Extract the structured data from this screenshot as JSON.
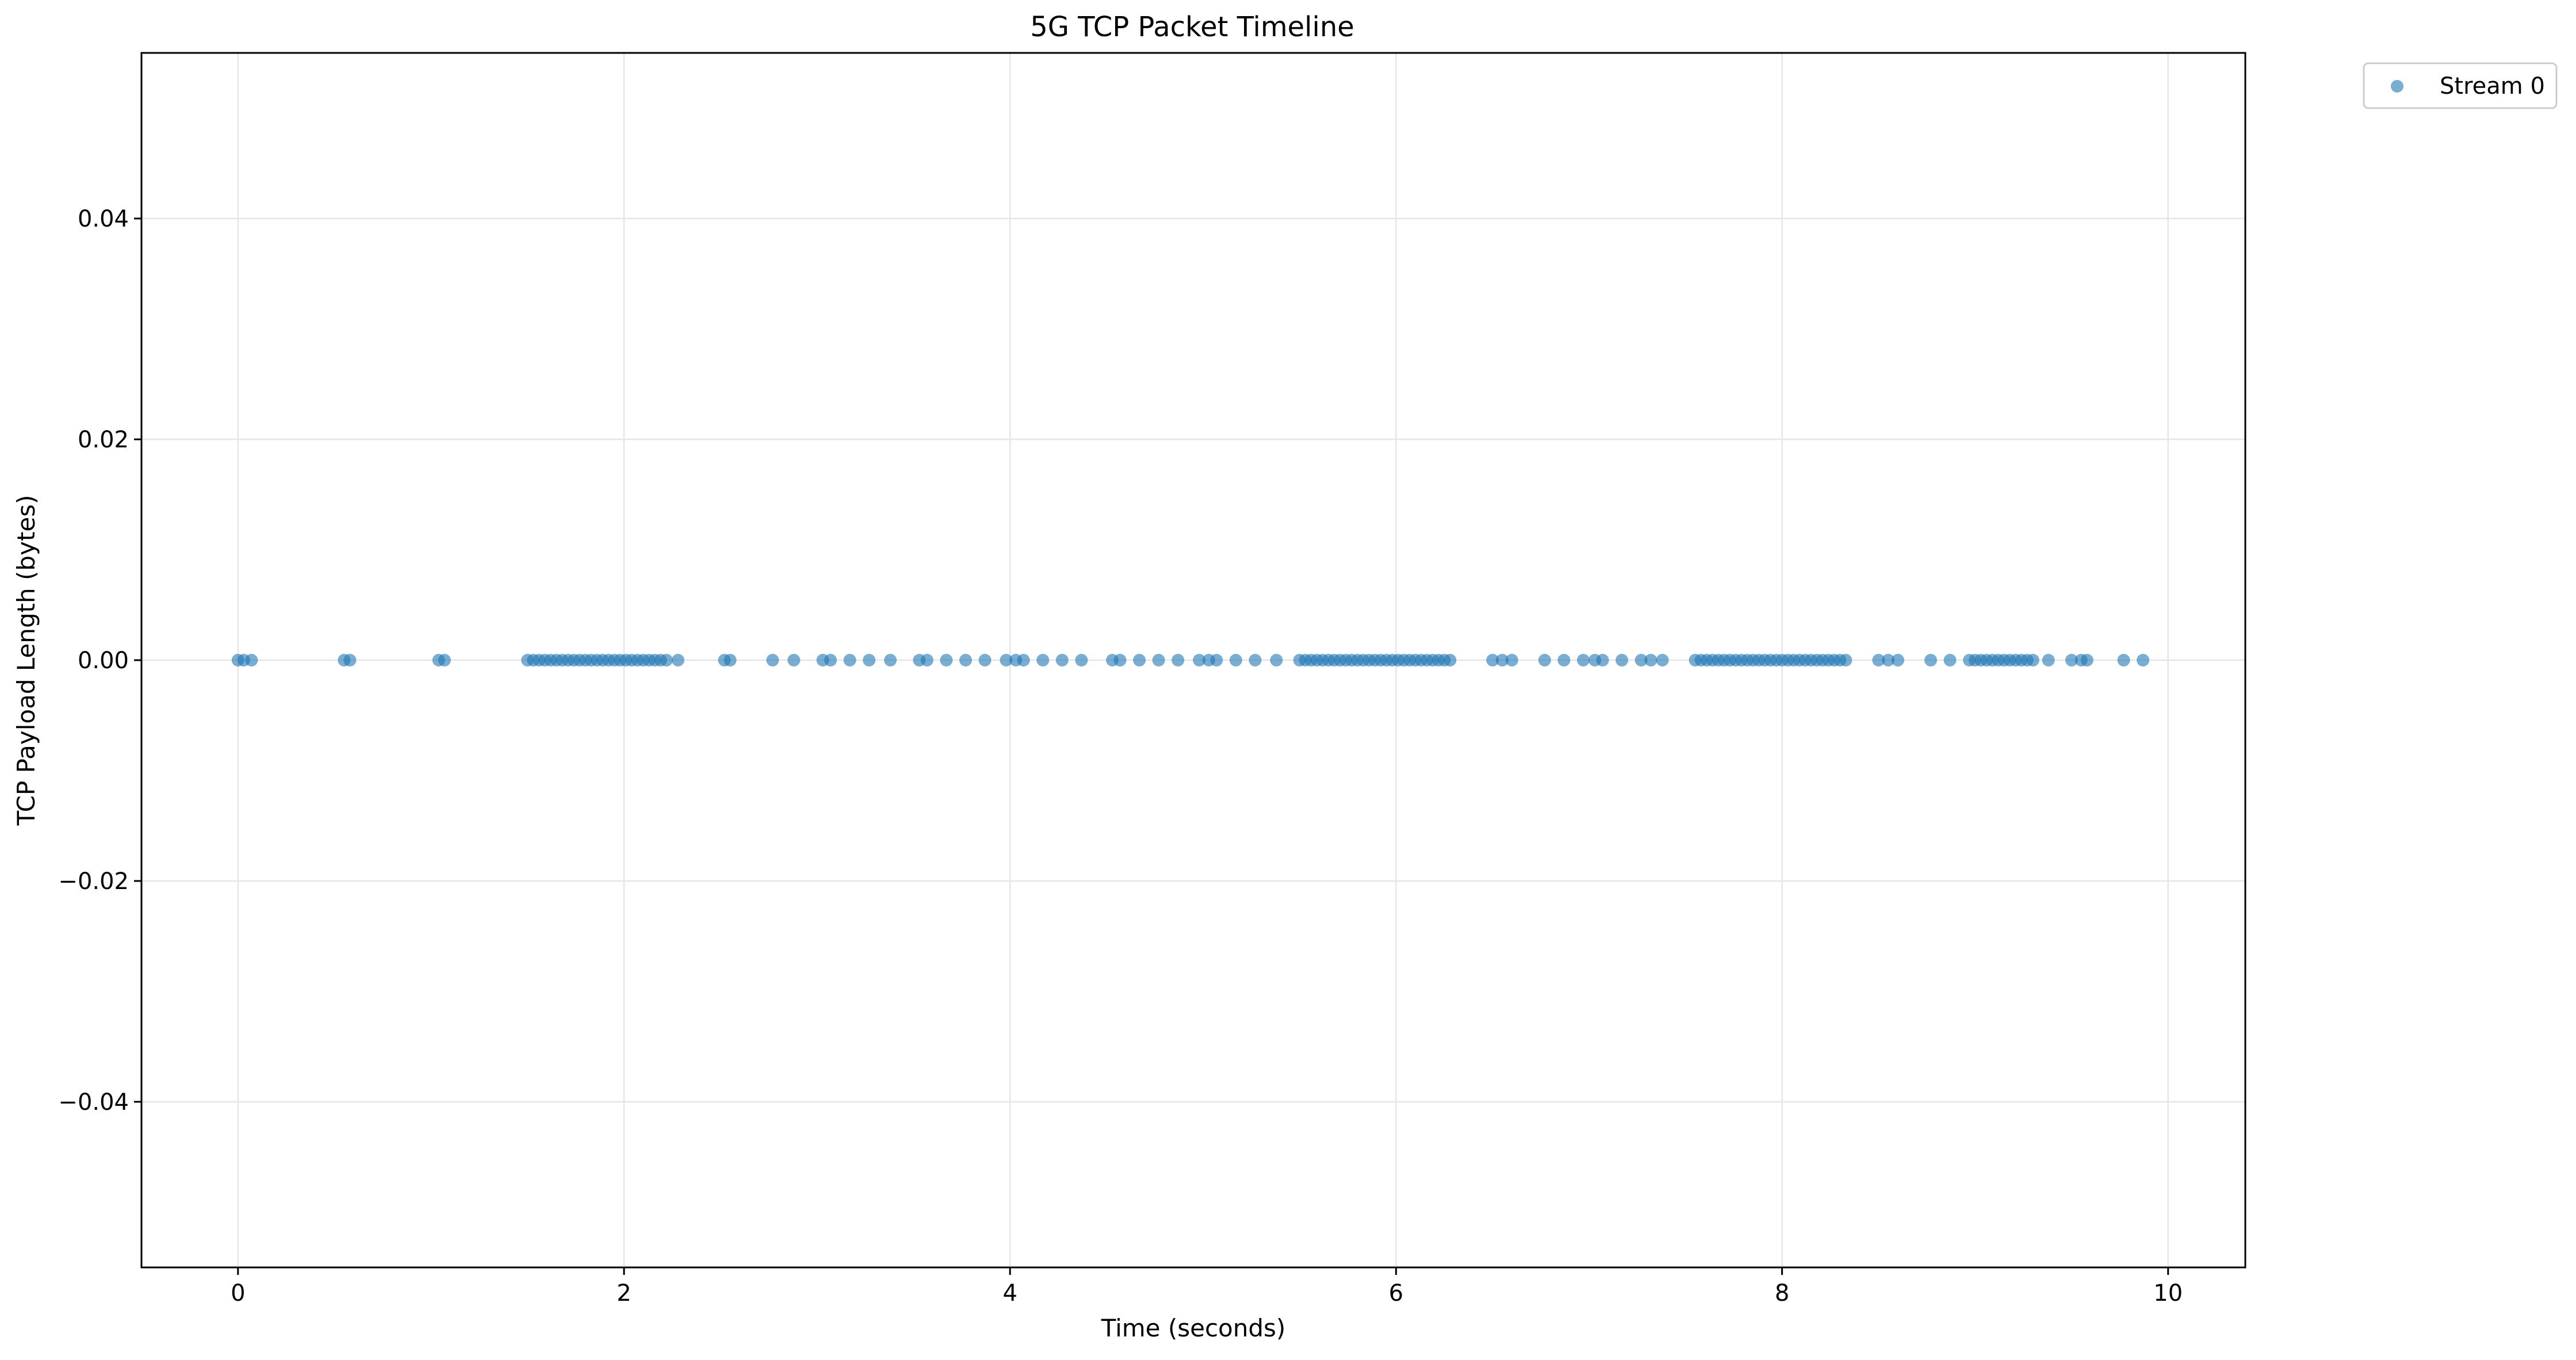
{
  "chart_data": {
    "type": "scatter",
    "title": "5G TCP Packet Timeline",
    "xlabel": "Time (seconds)",
    "ylabel": "TCP Payload Length (bytes)",
    "xlim": [
      -0.5,
      10.4
    ],
    "ylim": [
      -0.055,
      0.055
    ],
    "x_ticks": [
      0,
      2,
      4,
      6,
      8,
      10
    ],
    "x_tick_labels": [
      "0",
      "2",
      "4",
      "6",
      "8",
      "10"
    ],
    "y_ticks": [
      -0.04,
      -0.02,
      0.0,
      0.02,
      0.04
    ],
    "y_tick_labels": [
      "−0.04",
      "−0.02",
      "0.00",
      "0.02",
      "0.04"
    ],
    "grid": true,
    "legend_position": "outside-top-right",
    "colors": {
      "series": "#1f77b4",
      "grid": "#e6e6e6",
      "axes": "#000000"
    },
    "series": [
      {
        "name": "Stream 0",
        "y_constant": 0.0,
        "x": [
          0.0,
          0.03,
          0.07,
          0.55,
          0.58,
          1.04,
          1.07,
          1.5,
          1.53,
          1.56,
          1.59,
          1.62,
          1.65,
          1.68,
          1.71,
          1.74,
          1.77,
          1.8,
          1.83,
          1.86,
          1.89,
          1.92,
          1.95,
          1.98,
          2.01,
          2.04,
          2.07,
          2.1,
          2.13,
          2.16,
          2.19,
          2.22,
          2.28,
          2.52,
          2.55,
          2.77,
          2.88,
          3.03,
          3.07,
          3.17,
          3.27,
          3.38,
          3.53,
          3.57,
          3.67,
          3.77,
          3.87,
          3.98,
          4.03,
          4.07,
          4.17,
          4.27,
          4.37,
          4.53,
          4.57,
          4.67,
          4.77,
          4.87,
          4.98,
          5.03,
          5.07,
          5.17,
          5.27,
          5.38,
          5.5,
          5.53,
          5.56,
          5.59,
          5.62,
          5.65,
          5.68,
          5.71,
          5.74,
          5.77,
          5.8,
          5.83,
          5.86,
          5.89,
          5.92,
          5.95,
          5.98,
          6.01,
          6.04,
          6.07,
          6.1,
          6.13,
          6.16,
          6.19,
          6.22,
          6.25,
          6.28,
          6.5,
          6.55,
          6.6,
          6.77,
          6.87,
          6.97,
          7.03,
          7.07,
          7.17,
          7.27,
          7.32,
          7.38,
          7.55,
          7.58,
          7.61,
          7.64,
          7.67,
          7.7,
          7.73,
          7.76,
          7.79,
          7.82,
          7.85,
          7.88,
          7.91,
          7.94,
          7.97,
          8.0,
          8.03,
          8.06,
          8.09,
          8.12,
          8.15,
          8.18,
          8.21,
          8.24,
          8.27,
          8.3,
          8.33,
          8.5,
          8.55,
          8.6,
          8.77,
          8.87,
          8.97,
          9.0,
          9.03,
          9.06,
          9.09,
          9.12,
          9.15,
          9.18,
          9.21,
          9.24,
          9.27,
          9.3,
          9.38,
          9.5,
          9.55,
          9.58,
          9.77,
          9.87
        ]
      }
    ]
  }
}
